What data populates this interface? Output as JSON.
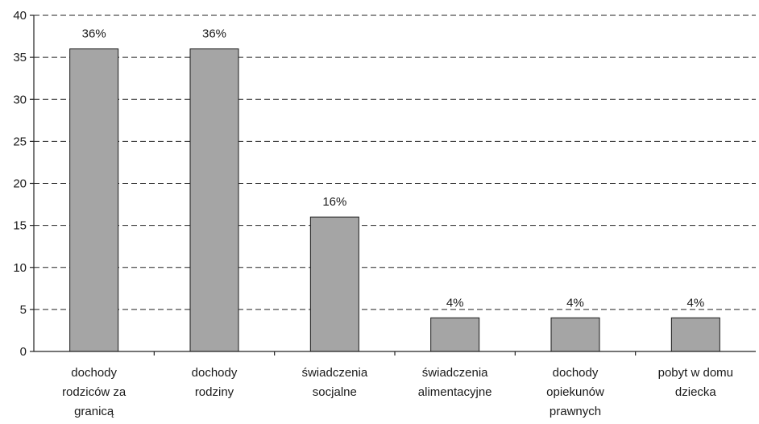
{
  "chart_data": {
    "type": "bar",
    "title": "",
    "xlabel": "",
    "ylabel": "",
    "categories": [
      [
        "dochody",
        "rodziców za",
        "granicą"
      ],
      [
        "dochody",
        "rodziny"
      ],
      [
        "świadczenia",
        "socjalne"
      ],
      [
        "świadczenia",
        "alimentacyjne"
      ],
      [
        "dochody",
        "opiekunów",
        "prawnych"
      ],
      [
        "pobyt w domu",
        "dziecka"
      ]
    ],
    "values": [
      36,
      36,
      16,
      4,
      4,
      4
    ],
    "data_labels": [
      "36%",
      "36%",
      "16%",
      "4%",
      "4%",
      "4%"
    ],
    "ylim": [
      0,
      40
    ],
    "yticks": [
      0,
      5,
      10,
      15,
      20,
      25,
      30,
      35,
      40
    ],
    "grid": "dashed-horizontal",
    "legend": "none",
    "colors": {
      "bar_fill": "#a5a5a5",
      "bar_stroke": "#1a1a1a",
      "grid": "#222222",
      "axis": "#222222"
    }
  }
}
